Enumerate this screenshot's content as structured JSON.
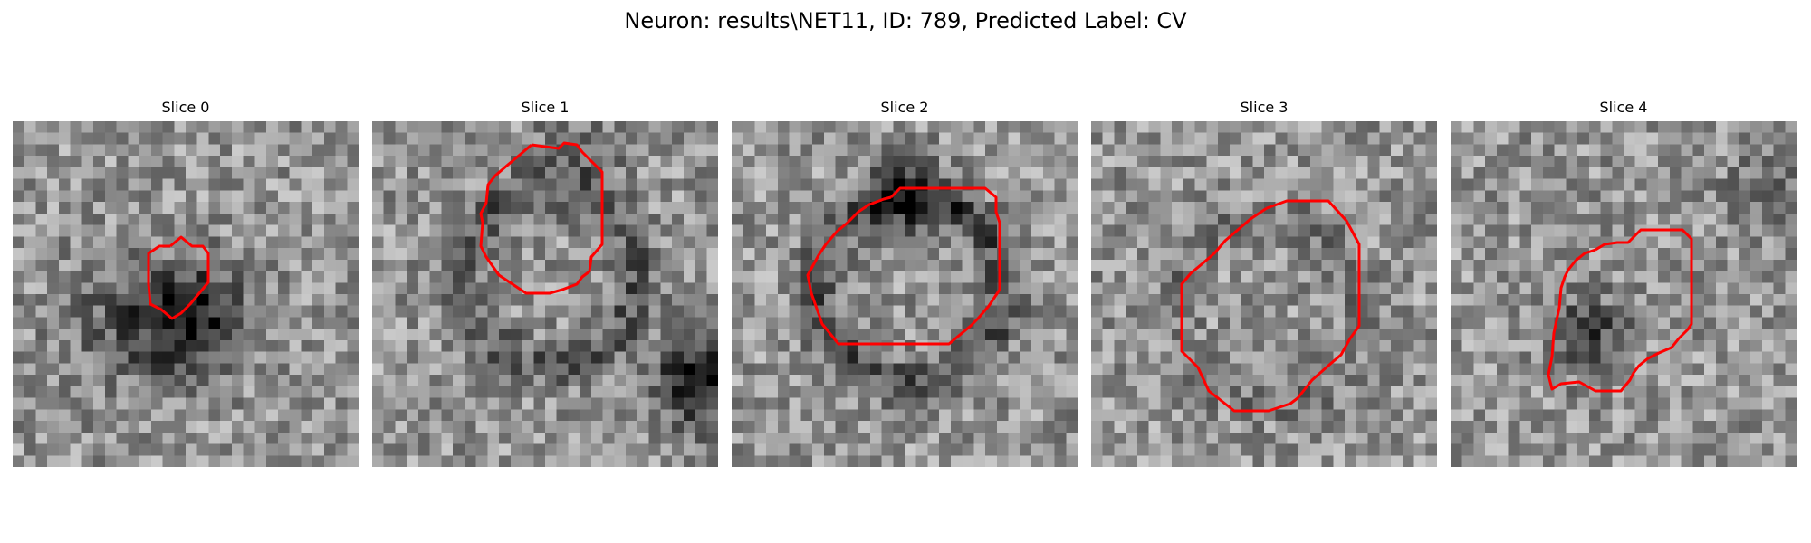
{
  "figure": {
    "title": "Neuron: results\\NET11, ID: 789, Predicted Label: CV"
  },
  "panels": [
    {
      "title": "Slice 0"
    },
    {
      "title": "Slice 1"
    },
    {
      "title": "Slice 2"
    },
    {
      "title": "Slice 3"
    },
    {
      "title": "Slice 4"
    }
  ],
  "colors": {
    "contour": "#ff0000",
    "background": "#ffffff"
  },
  "colormap": "gray"
}
